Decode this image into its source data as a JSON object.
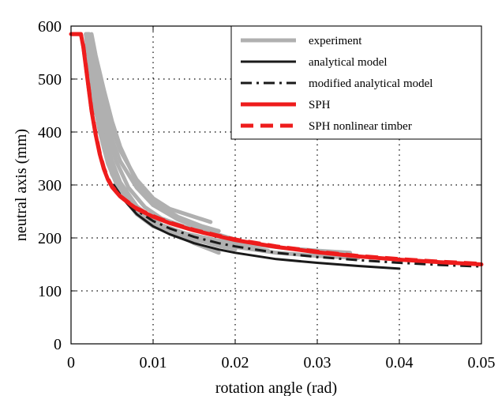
{
  "chart_data": {
    "type": "line",
    "title": "",
    "xlabel": "rotation angle (rad)",
    "ylabel": "neutral axis (mm)",
    "xlim": [
      0,
      0.05
    ],
    "ylim": [
      0,
      600
    ],
    "xticks": [
      0,
      0.01,
      0.02,
      0.03,
      0.04,
      0.05
    ],
    "xtick_labels": [
      "0",
      "0.01",
      "0.02",
      "0.03",
      "0.04",
      "0.05"
    ],
    "yticks": [
      0,
      100,
      200,
      300,
      400,
      500,
      600
    ],
    "ytick_labels": [
      "0",
      "100",
      "200",
      "300",
      "400",
      "500",
      "600"
    ],
    "grid": true,
    "legend_position": "top-right",
    "series": [
      {
        "name": "experiment",
        "color": "#b0b0b0",
        "style": "solid-thick",
        "curves": [
          {
            "x": [
              0.0018,
              0.002,
              0.0025,
              0.003,
              0.004,
              0.005,
              0.006,
              0.008,
              0.01,
              0.012,
              0.015,
              0.018
            ],
            "y": [
              585,
              560,
              520,
              470,
              395,
              345,
              305,
              260,
              235,
              215,
              190,
              172
            ]
          },
          {
            "x": [
              0.002,
              0.0025,
              0.003,
              0.004,
              0.005,
              0.006,
              0.008,
              0.01,
              0.013,
              0.016,
              0.02
            ],
            "y": [
              585,
              540,
              500,
              435,
              385,
              345,
              295,
              262,
              235,
              215,
              197
            ]
          },
          {
            "x": [
              0.0022,
              0.003,
              0.004,
              0.005,
              0.006,
              0.008,
              0.01,
              0.012,
              0.015,
              0.017
            ],
            "y": [
              585,
              520,
              455,
              405,
              365,
              310,
              275,
              255,
              240,
              230
            ]
          },
          {
            "x": [
              0.002,
              0.0025,
              0.003,
              0.004,
              0.005,
              0.007,
              0.009,
              0.012,
              0.015,
              0.018,
              0.02
            ],
            "y": [
              585,
              500,
              440,
              370,
              320,
              265,
              235,
              213,
              197,
              185,
              178
            ]
          },
          {
            "x": [
              0.0018,
              0.0022,
              0.0028,
              0.0035,
              0.0045,
              0.006,
              0.008,
              0.01,
              0.013,
              0.016
            ],
            "y": [
              585,
              520,
              460,
              400,
              340,
              285,
              245,
              222,
              205,
              195
            ]
          },
          {
            "x": [
              0.0025,
              0.003,
              0.004,
              0.005,
              0.006,
              0.008,
              0.01,
              0.013,
              0.016,
              0.018
            ],
            "y": [
              585,
              545,
              480,
              420,
              372,
              305,
              268,
              240,
              222,
              213
            ]
          },
          {
            "x": [
              0.002,
              0.0025,
              0.0032,
              0.004,
              0.005,
              0.007,
              0.009,
              0.012,
              0.016,
              0.02,
              0.025,
              0.03,
              0.035
            ],
            "y": [
              585,
              525,
              455,
              395,
              335,
              272,
              240,
              215,
              195,
              183,
              172,
              166,
              162
            ]
          },
          {
            "x": [
              0.0022,
              0.0028,
              0.0035,
              0.0045,
              0.006,
              0.008,
              0.01,
              0.014,
              0.018,
              0.022,
              0.026,
              0.03,
              0.034
            ],
            "y": [
              585,
              500,
              430,
              365,
              300,
              255,
              230,
              208,
              195,
              188,
              181,
              176,
              172
            ]
          },
          {
            "x": [
              0.0019,
              0.0024,
              0.003,
              0.004,
              0.005,
              0.007,
              0.009,
              0.012,
              0.015,
              0.018,
              0.021,
              0.024
            ],
            "y": [
              585,
              510,
              445,
              380,
              330,
              270,
              240,
              217,
              203,
              192,
              183,
              176
            ]
          },
          {
            "x": [
              0.0021,
              0.0027,
              0.0034,
              0.0043,
              0.0055,
              0.007,
              0.009,
              0.011,
              0.014,
              0.017
            ],
            "y": [
              585,
              525,
              460,
              400,
              345,
              295,
              258,
              237,
              220,
              210
            ]
          }
        ]
      },
      {
        "name": "analytical model",
        "color": "#1a1a1a",
        "style": "solid",
        "x": [
          0.0052,
          0.006,
          0.007,
          0.008,
          0.01,
          0.012,
          0.015,
          0.018,
          0.02,
          0.025,
          0.03,
          0.035,
          0.04
        ],
        "y": [
          300,
          280,
          262,
          245,
          222,
          207,
          190,
          178,
          172,
          160,
          153,
          147,
          142
        ]
      },
      {
        "name": "modified analytical model",
        "color": "#1a1a1a",
        "style": "dashdot",
        "x": [
          0.0052,
          0.006,
          0.007,
          0.008,
          0.01,
          0.012,
          0.015,
          0.018,
          0.02,
          0.025,
          0.03,
          0.035,
          0.04,
          0.045,
          0.05
        ],
        "y": [
          300,
          282,
          266,
          252,
          232,
          218,
          202,
          190,
          184,
          172,
          164,
          158,
          153,
          149,
          146
        ]
      },
      {
        "name": "SPH",
        "color": "#ee1c1c",
        "style": "solid-thick",
        "x": [
          0,
          0.0012,
          0.0015,
          0.002,
          0.0025,
          0.003,
          0.0035,
          0.004,
          0.0045,
          0.005,
          0.006,
          0.007,
          0.008,
          0.01,
          0.012,
          0.015,
          0.018,
          0.02,
          0.025,
          0.03,
          0.035,
          0.04,
          0.045,
          0.05
        ],
        "y": [
          585,
          585,
          560,
          500,
          440,
          395,
          358,
          330,
          310,
          296,
          278,
          266,
          255,
          240,
          228,
          214,
          203,
          196,
          183,
          173,
          165,
          159,
          154,
          150
        ]
      },
      {
        "name": "SPH nonlinear timber",
        "color": "#ee1c1c",
        "style": "dashed-thick",
        "x": [
          0,
          0.0012,
          0.0015,
          0.002,
          0.0025,
          0.003,
          0.0035,
          0.004,
          0.0045,
          0.005,
          0.006,
          0.007,
          0.008,
          0.01,
          0.012,
          0.015,
          0.018,
          0.02,
          0.025,
          0.03,
          0.035,
          0.04,
          0.045,
          0.05
        ],
        "y": [
          585,
          585,
          562,
          502,
          442,
          397,
          360,
          332,
          312,
          297,
          279,
          267,
          256,
          241,
          229,
          215,
          204,
          197,
          184,
          174,
          166,
          160,
          155,
          151
        ]
      }
    ]
  }
}
